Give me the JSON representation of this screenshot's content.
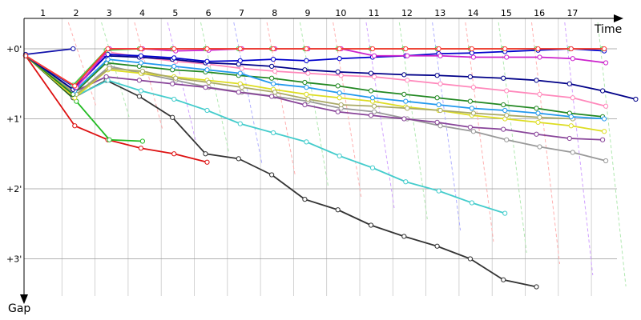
{
  "chart_data": {
    "type": "line",
    "xlabel": "Time",
    "ylabel": "Gap",
    "x_ticks": [
      "1",
      "2",
      "3",
      "4",
      "5",
      "6",
      "7",
      "8",
      "9",
      "10",
      "11",
      "12",
      "13",
      "14",
      "15",
      "16",
      "17"
    ],
    "y_ticks": [
      {
        "value": 0,
        "label": "+0'"
      },
      {
        "value": 1,
        "label": "+1'"
      },
      {
        "value": 2,
        "label": "+2'"
      },
      {
        "value": 3,
        "label": "+3'"
      }
    ],
    "colors": {
      "axis": "#000000",
      "grid": "#999999",
      "vgrid": "#c8c8c8",
      "background": "#ffffff"
    },
    "series": [
      {
        "color": "#1111aa",
        "values": [
          0.08,
          0.0,
          null,
          null,
          null,
          null,
          null,
          null,
          null,
          null,
          null,
          null,
          null,
          null,
          null,
          null,
          null,
          null
        ]
      },
      {
        "color": "#dd1111",
        "values": [
          0.1,
          1.1,
          1.3,
          1.42,
          1.5,
          1.62
        ]
      },
      {
        "color": "#22bb22",
        "values": [
          0.1,
          0.75,
          1.3,
          1.32
        ]
      },
      {
        "color": "#333333",
        "values": [
          0.1,
          0.7,
          0.45,
          0.68,
          0.98,
          1.5,
          1.57,
          1.8,
          2.15,
          2.3,
          2.52,
          2.68,
          2.82,
          3.0,
          3.3,
          3.4
        ]
      },
      {
        "color": "#44cccc",
        "values": [
          0.1,
          0.68,
          0.45,
          0.6,
          0.72,
          0.88,
          1.07,
          1.2,
          1.33,
          1.53,
          1.7,
          1.9,
          2.03,
          2.2,
          2.35
        ]
      },
      {
        "color": "#999999",
        "values": [
          0.1,
          0.65,
          0.25,
          0.35,
          0.45,
          0.55,
          0.62,
          0.68,
          0.75,
          0.85,
          0.9,
          1.0,
          1.1,
          1.18,
          1.3,
          1.4,
          1.48,
          1.6
        ]
      },
      {
        "color": "#884499",
        "values": [
          0.1,
          0.62,
          0.4,
          0.45,
          0.5,
          0.55,
          0.62,
          0.68,
          0.8,
          0.9,
          0.95,
          1.0,
          1.05,
          1.12,
          1.15,
          1.22,
          1.28,
          1.3
        ]
      },
      {
        "color": "#dddd22",
        "values": [
          0.1,
          0.7,
          0.3,
          0.35,
          0.4,
          0.45,
          0.5,
          0.58,
          0.65,
          0.7,
          0.75,
          0.83,
          0.88,
          0.95,
          1.0,
          1.05,
          1.1,
          1.18
        ]
      },
      {
        "color": "#aaaa66",
        "values": [
          0.1,
          0.65,
          0.28,
          0.32,
          0.42,
          0.48,
          0.55,
          0.62,
          0.72,
          0.8,
          0.82,
          0.85,
          0.88,
          0.92,
          0.95,
          0.98,
          1.0
        ]
      },
      {
        "color": "#228822",
        "values": [
          0.1,
          0.65,
          0.2,
          0.25,
          0.3,
          0.33,
          0.38,
          0.42,
          0.48,
          0.53,
          0.6,
          0.65,
          0.7,
          0.75,
          0.8,
          0.85,
          0.92,
          0.97
        ]
      },
      {
        "color": "#2299ee",
        "values": [
          0.1,
          0.6,
          0.15,
          0.2,
          0.25,
          0.3,
          0.35,
          0.5,
          0.55,
          0.63,
          0.7,
          0.75,
          0.8,
          0.85,
          0.88,
          0.92,
          0.97,
          1.0
        ]
      },
      {
        "color": "#ff88bb",
        "values": [
          0.1,
          0.55,
          0.05,
          0.12,
          0.18,
          0.22,
          0.28,
          0.32,
          0.35,
          0.38,
          0.4,
          0.45,
          0.5,
          0.55,
          0.6,
          0.65,
          0.7,
          0.82
        ]
      },
      {
        "color": "#000088",
        "values": [
          0.1,
          0.58,
          0.1,
          0.12,
          0.15,
          0.2,
          0.22,
          0.25,
          0.3,
          0.33,
          0.35,
          0.37,
          0.38,
          0.4,
          0.42,
          0.45,
          0.5,
          0.6,
          0.72
        ]
      },
      {
        "color": "#0000cc",
        "values": [
          0.1,
          0.55,
          0.08,
          0.1,
          0.13,
          0.18,
          0.17,
          0.15,
          0.17,
          0.14,
          0.12,
          0.1,
          0.07,
          0.06,
          0.04,
          0.02,
          0.0,
          0.03
        ]
      },
      {
        "color": "#cc22cc",
        "values": [
          0.1,
          0.55,
          0.0,
          0.0,
          0.03,
          0.02,
          0.0,
          0.0,
          0.0,
          0.0,
          0.1,
          0.1,
          0.1,
          0.12,
          0.12,
          0.12,
          0.14,
          0.2
        ]
      },
      {
        "color": "#44cc44",
        "values": [
          0.1,
          0.52,
          0.02,
          0.0,
          0.0,
          0.0,
          0.0,
          0.0,
          0.0,
          0.0,
          0.0,
          0.0,
          0.0,
          0.0,
          0.0,
          0.0,
          0.0,
          0.0
        ]
      },
      {
        "color": "#ff3333",
        "values": [
          0.1,
          0.53,
          0.0,
          0.0,
          0.0,
          0.0,
          0.0,
          0.0,
          0.0,
          0.0,
          0.0,
          0.0,
          0.0,
          0.0,
          0.0,
          0.0,
          0.0,
          0.0
        ]
      }
    ]
  }
}
